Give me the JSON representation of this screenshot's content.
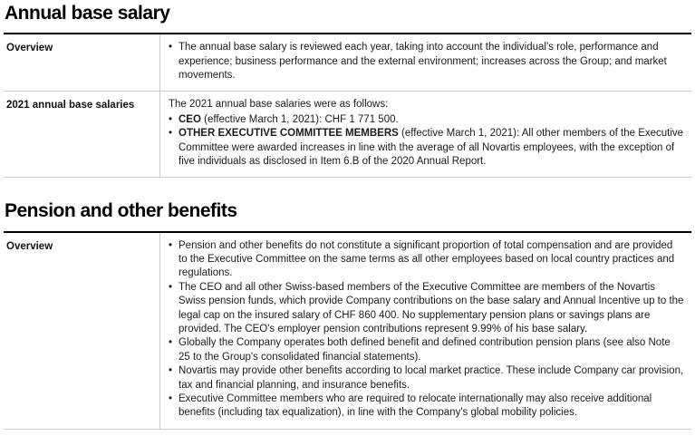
{
  "bullet_char": "•",
  "colors": {
    "rule_heavy": "#000000",
    "rule_light": "#c9c9c9",
    "text": "#141414"
  },
  "sections": [
    {
      "title": "Annual base salary",
      "rows": [
        {
          "label": "Overview",
          "intro": "",
          "bullets": [
            {
              "bold": "",
              "text": "The annual base salary is reviewed each year, taking into account the individual's role, performance and experience; business performance and the external environment; increases across the Group; and market movements."
            }
          ]
        },
        {
          "label": "2021 annual base salaries",
          "intro": "The 2021 annual base salaries were as follows:",
          "bullets": [
            {
              "bold": "CEO",
              "text": " (effective March 1, 2021): CHF 1 771 500."
            },
            {
              "bold": "OTHER EXECUTIVE COMMITTEE MEMBERS",
              "text": " (effective March 1, 2021): All other members of the Executive Committee were awarded increases in line with the average of all Novartis employees, with the exception of five individuals as disclosed in Item 6.B of the 2020 Annual Report."
            }
          ]
        }
      ]
    },
    {
      "title": "Pension and other benefits",
      "rows": [
        {
          "label": "Overview",
          "intro": "",
          "bullets": [
            {
              "bold": "",
              "text": "Pension and other benefits do not constitute a significant proportion of total compensation and are provided to the Executive Committee on the same terms as all other employees based on local country practices and regulations."
            },
            {
              "bold": "",
              "text": "The CEO and all other Swiss-based members of the Executive Committee are members of the Novartis Swiss pension funds, which provide Company contributions on the base salary and Annual Incentive up to the legal cap on the insured salary of CHF 860 400. No supplementary pension plans or savings plans are provided. The CEO's employer pension contributions represent 9.99% of his base salary."
            },
            {
              "bold": "",
              "text": "Globally the Company operates both defined benefit and defined contribution pension plans (see also Note 25 to the Group's consolidated financial statements)."
            },
            {
              "bold": "",
              "text": "Novartis may provide other benefits according to local market practice. These include Company car provision, tax and financial planning, and insurance benefits."
            },
            {
              "bold": "",
              "text": "Executive Committee members who are required to relocate internationally may also receive additional benefits (including tax equalization), in line with the Company's global mobility policies."
            }
          ]
        }
      ]
    }
  ]
}
